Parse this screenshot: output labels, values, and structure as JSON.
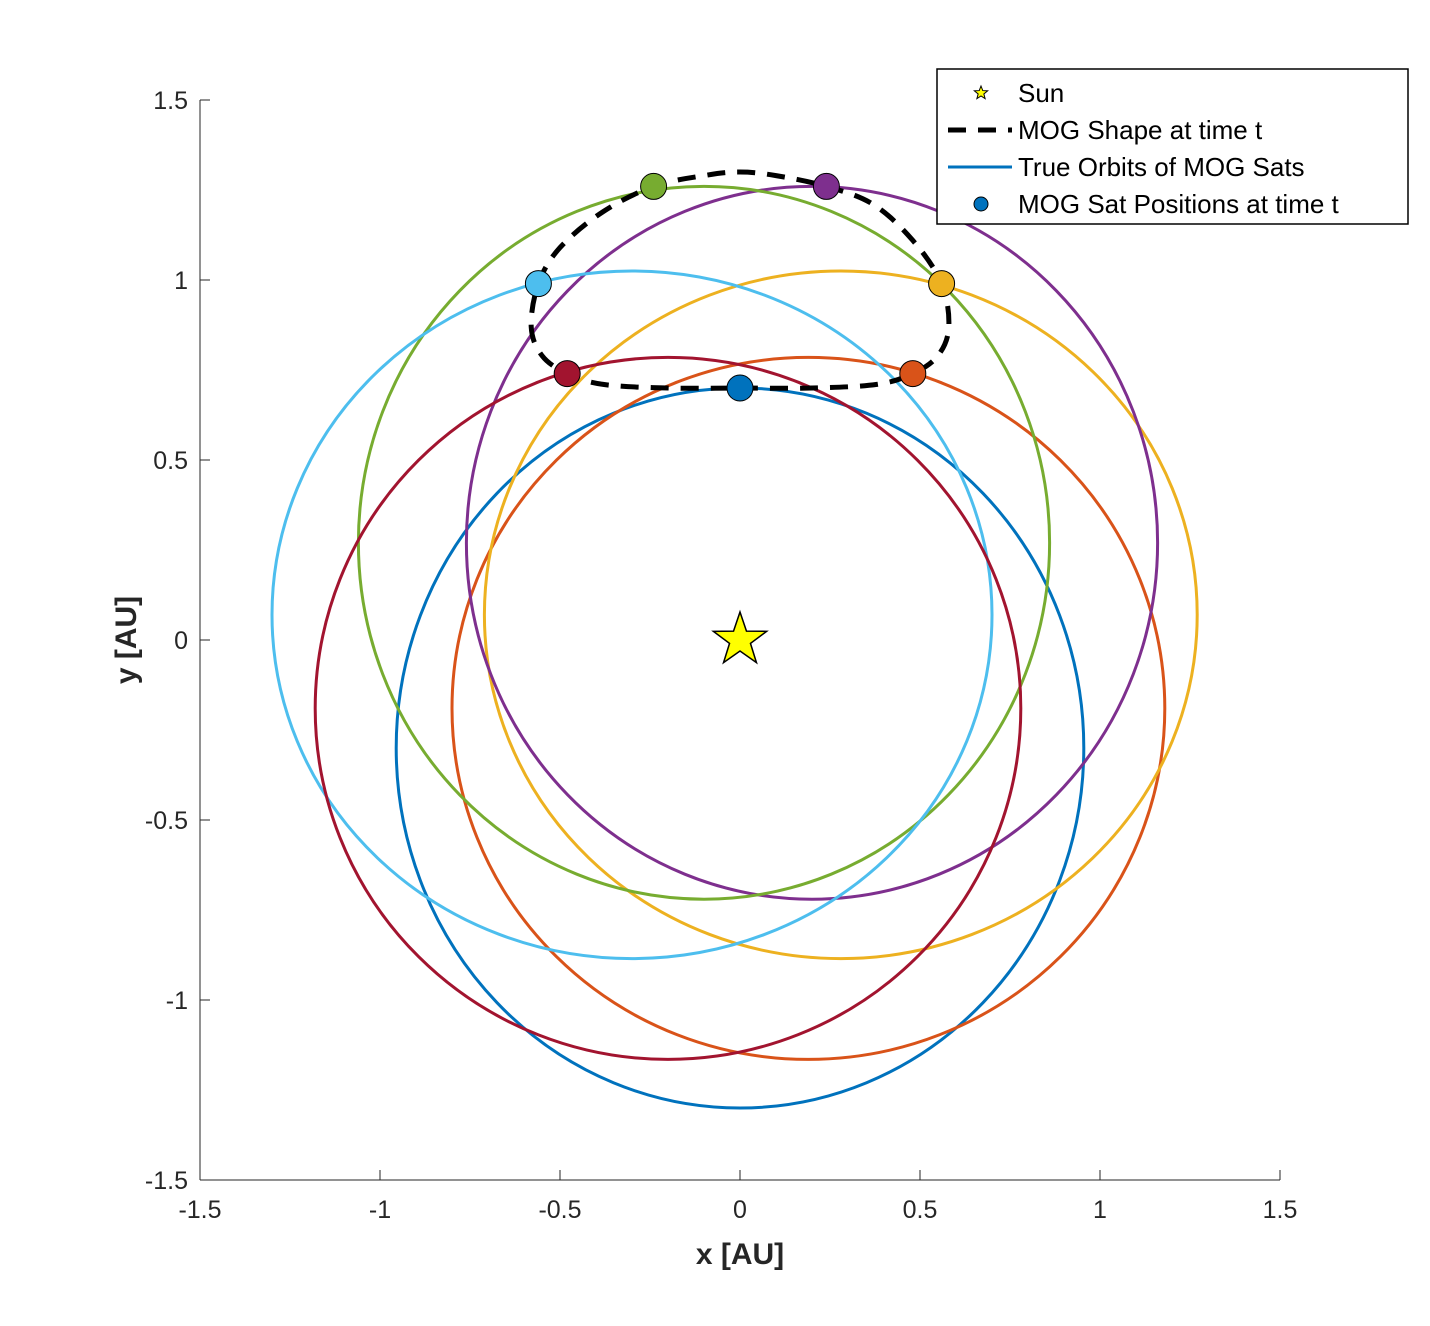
{
  "chart_data": {
    "type": "line",
    "xlabel": "x [AU]",
    "ylabel": "y [AU]",
    "xlim": [
      -1.5,
      1.5
    ],
    "ylim": [
      -1.5,
      1.5
    ],
    "xticks": [
      "-1.5",
      "-1",
      "-0.5",
      "0",
      "0.5",
      "1",
      "1.5"
    ],
    "yticks": [
      "-1.5",
      "-1",
      "-0.5",
      "0",
      "0.5",
      "1",
      "1.5"
    ],
    "grid": false,
    "legend_position": "top-right",
    "legend": [
      {
        "label": "Sun",
        "marker": "star"
      },
      {
        "label": "MOG Shape at time t",
        "marker": "dashed-line"
      },
      {
        "label": "True Orbits of MOG Sats",
        "marker": "line"
      },
      {
        "label": "MOG Sat Positions at time t",
        "marker": "dot"
      }
    ],
    "sun": {
      "x": 0,
      "y": 0,
      "color": "#ffff00"
    },
    "orbits": [
      {
        "color": "#0072bd",
        "cx": 0.0,
        "cy": -0.3,
        "rx": 0.955,
        "ry": 1.0,
        "sat": [
          0.0,
          0.7
        ]
      },
      {
        "color": "#d95319",
        "cx": 0.19,
        "cy": -0.19,
        "rx": 0.99,
        "ry": 0.975,
        "sat": [
          0.48,
          0.74
        ]
      },
      {
        "color": "#edb120",
        "cx": 0.28,
        "cy": 0.07,
        "rx": 0.99,
        "ry": 0.955,
        "sat": [
          0.56,
          0.99
        ]
      },
      {
        "color": "#7e2f8e",
        "cx": 0.2,
        "cy": 0.27,
        "rx": 0.96,
        "ry": 0.99,
        "sat": [
          0.24,
          1.26
        ]
      },
      {
        "color": "#77ac30",
        "cx": -0.1,
        "cy": 0.27,
        "rx": 0.96,
        "ry": 0.99,
        "sat": [
          -0.24,
          1.26
        ]
      },
      {
        "color": "#4dbeee",
        "cx": -0.3,
        "cy": 0.07,
        "rx": 1.0,
        "ry": 0.955,
        "sat": [
          -0.56,
          0.99
        ]
      },
      {
        "color": "#a2142f",
        "cx": -0.2,
        "cy": -0.19,
        "rx": 0.98,
        "ry": 0.975,
        "sat": [
          -0.48,
          0.74
        ]
      }
    ],
    "mog_shape": {
      "color": "#000000",
      "points": [
        [
          0.0,
          0.7
        ],
        [
          0.2,
          0.7
        ],
        [
          0.38,
          0.71
        ],
        [
          0.48,
          0.74
        ],
        [
          0.55,
          0.79
        ],
        [
          0.58,
          0.87
        ],
        [
          0.56,
          0.99
        ],
        [
          0.48,
          1.11
        ],
        [
          0.37,
          1.21
        ],
        [
          0.24,
          1.26
        ],
        [
          0.1,
          1.29
        ],
        [
          0.0,
          1.3
        ],
        [
          -0.1,
          1.29
        ],
        [
          -0.24,
          1.26
        ],
        [
          -0.38,
          1.19
        ],
        [
          -0.5,
          1.09
        ],
        [
          -0.56,
          0.99
        ],
        [
          -0.58,
          0.87
        ],
        [
          -0.55,
          0.79
        ],
        [
          -0.48,
          0.74
        ],
        [
          -0.38,
          0.71
        ],
        [
          -0.2,
          0.7
        ],
        [
          0.0,
          0.7
        ]
      ]
    }
  }
}
